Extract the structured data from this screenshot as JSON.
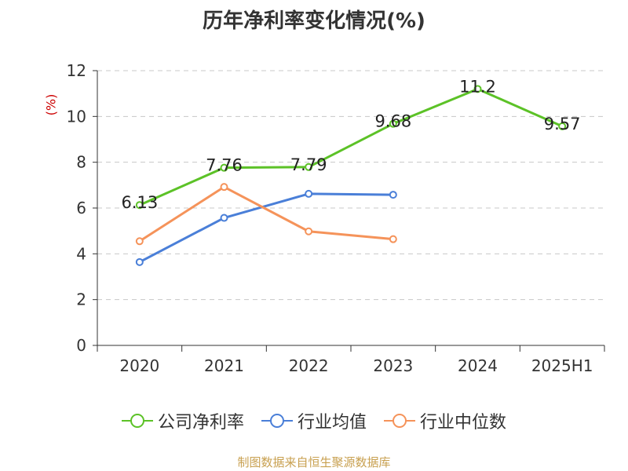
{
  "chart_data": {
    "type": "line",
    "title": "历年净利率变化情况(%)",
    "ylabel": "(%)",
    "xlabel": "",
    "categories": [
      "2020",
      "2021",
      "2022",
      "2023",
      "2024",
      "2025H1"
    ],
    "ylim": [
      0,
      12
    ],
    "yticks": [
      0,
      2,
      4,
      6,
      8,
      10,
      12
    ],
    "grid": true,
    "legend_position": "bottom",
    "series": [
      {
        "name": "公司净利率",
        "values": [
          6.13,
          7.76,
          7.79,
          9.68,
          11.2,
          9.57
        ],
        "color": "#5cc227",
        "labels": [
          "6.13",
          "7.76",
          "7.79",
          "9.68",
          "11.2",
          "9.57"
        ]
      },
      {
        "name": "行业均值",
        "values": [
          3.64,
          5.57,
          6.62,
          6.58,
          null,
          null
        ],
        "color": "#4a7fd8"
      },
      {
        "name": "行业中位数",
        "values": [
          4.55,
          6.92,
          4.98,
          4.64,
          null,
          null
        ],
        "color": "#f5935a"
      }
    ]
  },
  "footer": {
    "source": "制图数据来自恒生聚源数据库"
  }
}
